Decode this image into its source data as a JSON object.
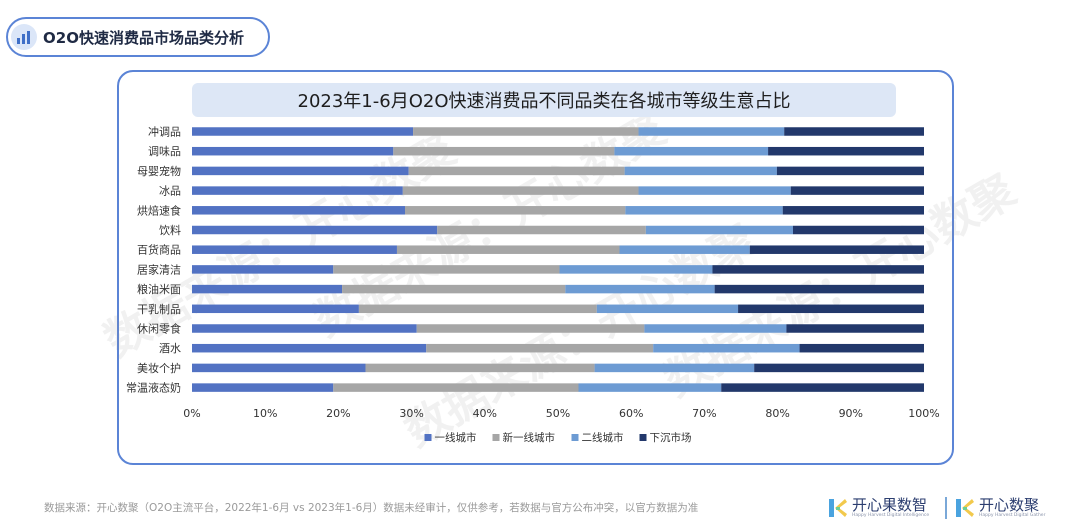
{
  "header": {
    "title": "O2O快速消费品市场品类分析",
    "icon": "bar-chart-icon"
  },
  "watermark": "数据来源：开心数聚",
  "chart_data": {
    "type": "bar",
    "orientation": "horizontal",
    "stacked": true,
    "percent": true,
    "title": "2023年1-6月O2O快速消费品不同品类在各城市等级生意占比",
    "categories": [
      "冲调品",
      "调味品",
      "母婴宠物",
      "冰品",
      "烘焙速食",
      "饮料",
      "百货商品",
      "居家清洁",
      "粮油米面",
      "干乳制品",
      "休闲零食",
      "酒水",
      "美妆个护",
      "常温液态奶"
    ],
    "series": [
      {
        "name": "一线城市",
        "color": "#5272c3",
        "values": [
          30.2,
          27.5,
          29.6,
          28.8,
          29.1,
          33.5,
          28.0,
          19.3,
          20.5,
          22.8,
          30.7,
          32.0,
          23.7,
          19.3
        ]
      },
      {
        "name": "新一线城市",
        "color": "#a6a6a6",
        "values": [
          30.8,
          30.2,
          29.5,
          32.2,
          30.1,
          28.5,
          30.4,
          30.9,
          30.5,
          32.5,
          31.1,
          31.0,
          31.3,
          33.5
        ]
      },
      {
        "name": "二线城市",
        "color": "#6d9bd3",
        "values": [
          19.9,
          21.0,
          20.8,
          20.8,
          21.5,
          20.1,
          17.8,
          20.9,
          20.4,
          19.3,
          19.4,
          20.0,
          21.8,
          19.5
        ]
      },
      {
        "name": "下沉市场",
        "color": "#22386b",
        "values": [
          19.1,
          21.3,
          20.1,
          18.2,
          19.3,
          17.9,
          23.8,
          28.9,
          28.6,
          25.4,
          18.8,
          17.0,
          23.2,
          27.7
        ]
      }
    ],
    "xlim": [
      0,
      100
    ],
    "x_ticks": [
      "0%",
      "10%",
      "20%",
      "30%",
      "40%",
      "50%",
      "60%",
      "70%",
      "80%",
      "90%",
      "100%"
    ],
    "legend_position": "bottom",
    "grid": false
  },
  "footer": {
    "source": "数据来源：开心数聚（O2O主流平台，2022年1-6月 vs 2023年1-6月）数据未经审计，仅供参考，若数据与官方公布冲突，以官方数据为准",
    "logo1_text": "开心果数智",
    "logo1_sub": "Happy Harvest Digital Intelligence",
    "logo2_text": "开心数聚",
    "logo2_sub": "Happy Harvest Digital Gather",
    "logo_accent_colors": [
      "#f2c94c",
      "#4aa3df",
      "#6fcf97"
    ]
  }
}
